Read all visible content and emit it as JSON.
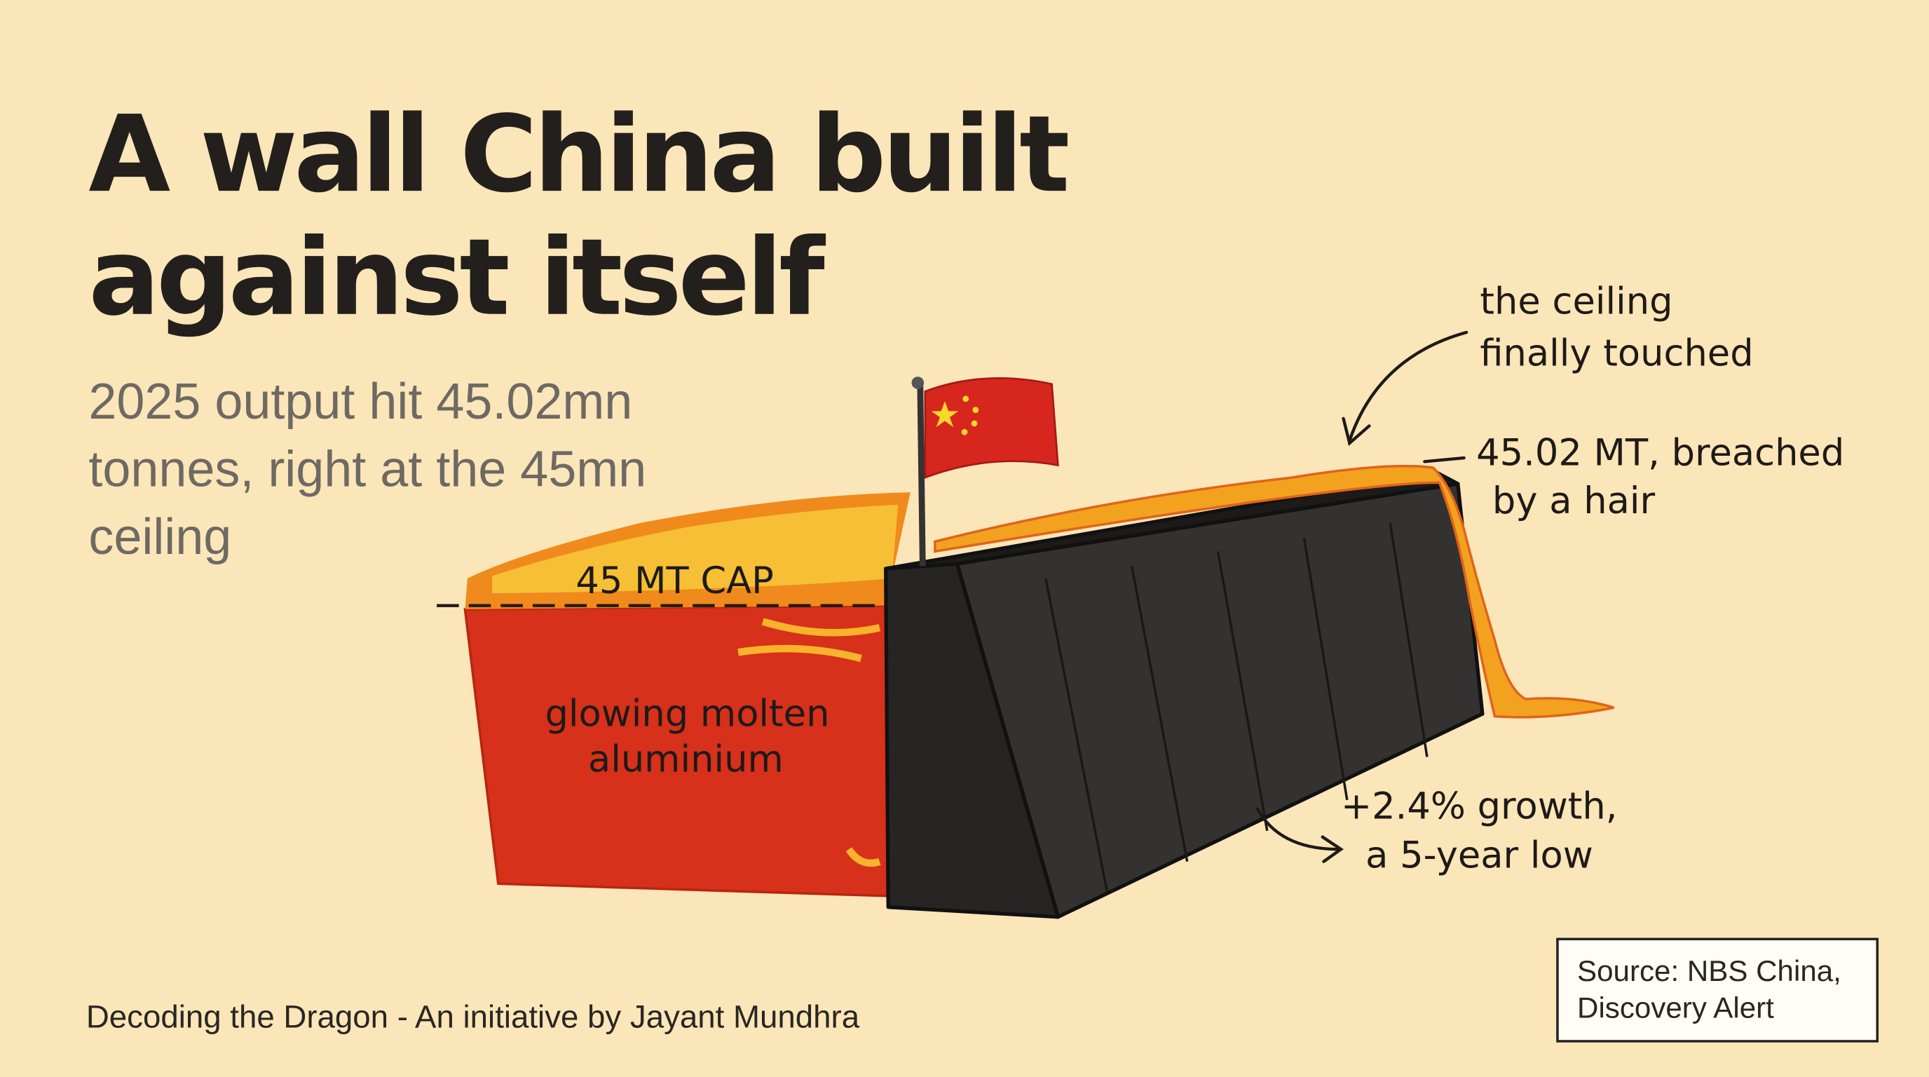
{
  "title": [
    "A wall China built",
    "against itself"
  ],
  "subtitle": [
    "2025 output hit 45.02mn",
    "tonnes, right at the 45mn",
    "ceiling"
  ],
  "illustration": {
    "cap_label": "45 MT CAP",
    "molten_label": [
      "glowing molten",
      "aluminium"
    ],
    "ceiling_note": [
      "the ceiling",
      "finally touched"
    ],
    "breach_note": [
      "45.02 MT, breached",
      "by a hair"
    ],
    "growth_note": [
      "+2.4% growth,",
      "a 5-year low"
    ]
  },
  "footer": "Decoding the Dragon - An initiative by Jayant Mundhra",
  "source": [
    "Source: NBS China,",
    "Discovery Alert"
  ]
}
